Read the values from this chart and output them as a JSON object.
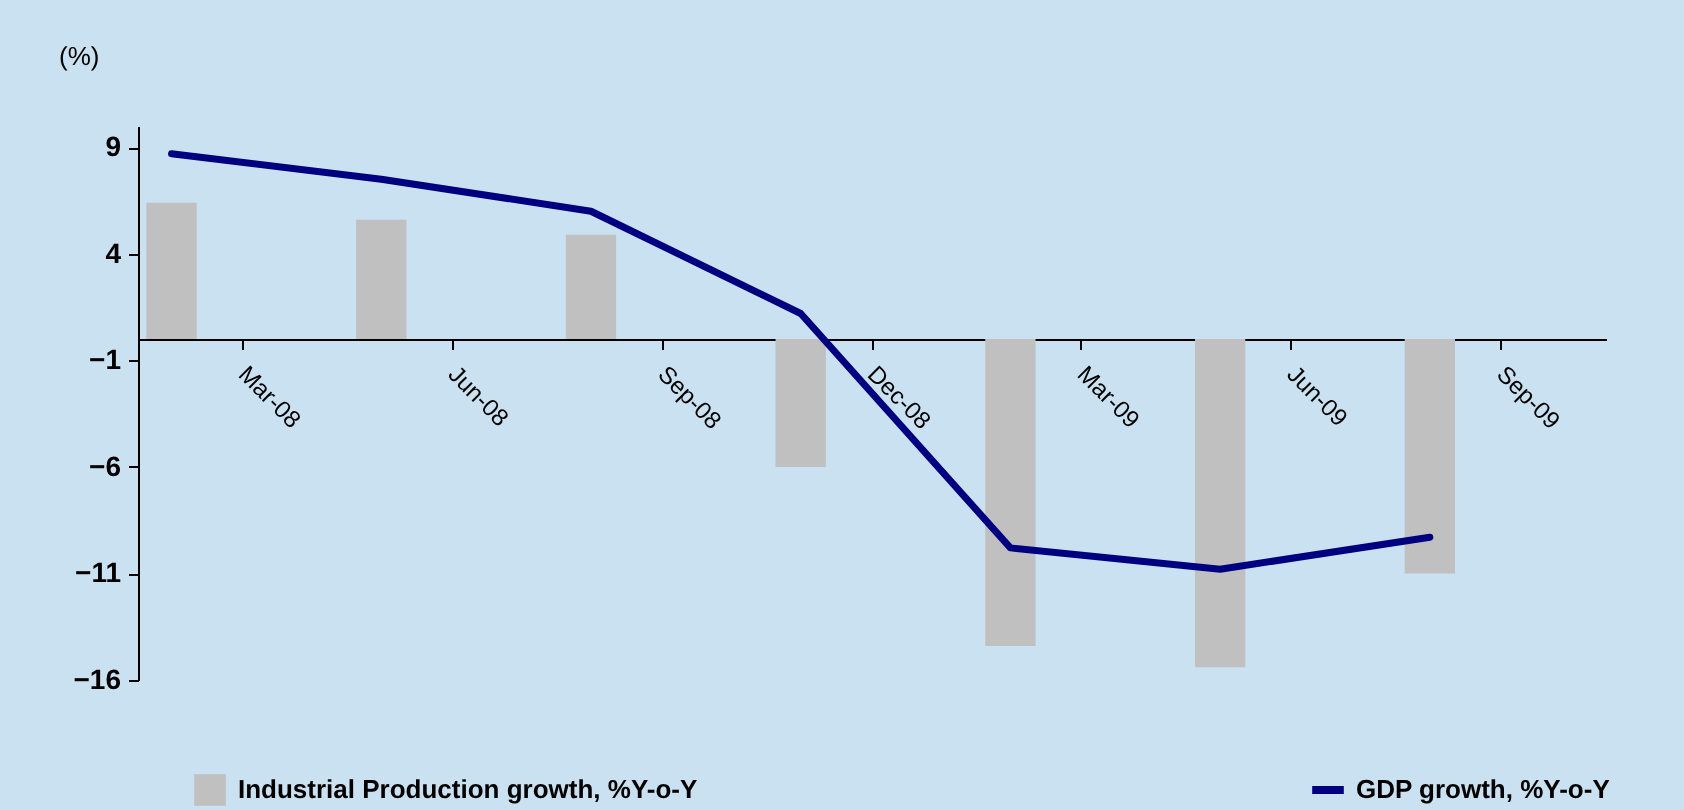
{
  "chart_data": {
    "type": "bar",
    "ylabel": "(%)",
    "categories": [
      "Mar-08",
      "Jun-08",
      "Sep-08",
      "Dec-08",
      "Mar-09",
      "Jun-09",
      "Sep-09"
    ],
    "series": [
      {
        "name": "Industrial Production growth, %Y-o-Y",
        "color": "#c0c0c0",
        "values": [
          6.4,
          5.6,
          4.9,
          -6.0,
          -14.4,
          -15.4,
          -11.0
        ]
      },
      {
        "name": "GDP growth, %Y-o-Y",
        "type": "line",
        "color": "#000080",
        "values": [
          8.7,
          7.5,
          6.0,
          1.2,
          -9.8,
          -10.8,
          -9.3
        ]
      }
    ],
    "ylim": [
      -16,
      10
    ],
    "yticks": [
      -16,
      -11,
      -6,
      -1,
      4,
      9
    ],
    "grid": false,
    "legend": "bottom"
  }
}
